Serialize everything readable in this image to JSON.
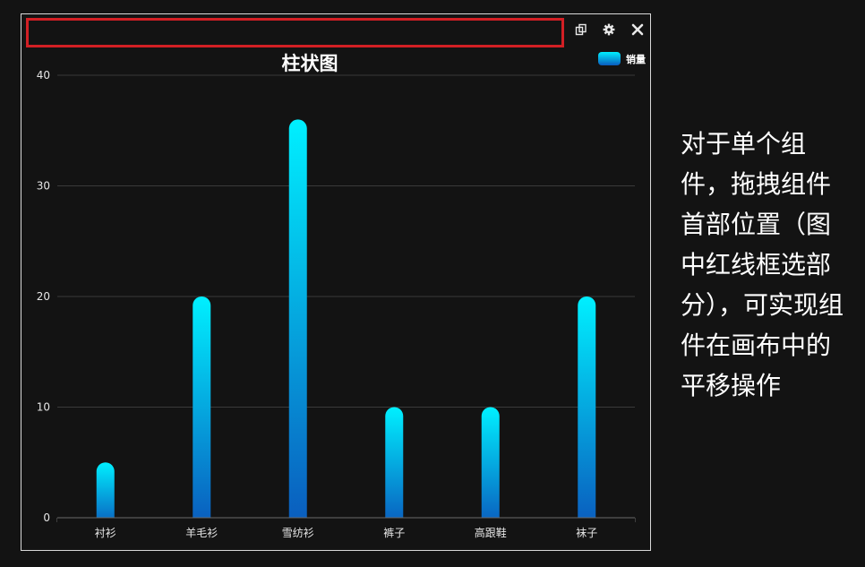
{
  "panel": {
    "toolbar": {
      "copy_icon": "copy-icon",
      "settings_icon": "gear-icon",
      "close_icon": "close-icon"
    }
  },
  "colors": {
    "background": "#131313",
    "highlight_border": "#d21f24",
    "bar_top": "#00f0ff",
    "bar_bottom": "#0a5bbd",
    "grid": "#3a3a3a"
  },
  "chart_data": {
    "type": "bar",
    "title": "柱状图",
    "categories": [
      "衬衫",
      "羊毛衫",
      "雪纺衫",
      "裤子",
      "高跟鞋",
      "袜子"
    ],
    "series": [
      {
        "name": "销量",
        "values": [
          5,
          20,
          36,
          10,
          10,
          20
        ]
      }
    ],
    "ylim": [
      0,
      40
    ],
    "yticks": [
      0,
      10,
      20,
      30,
      40
    ],
    "grid": true,
    "legend_position": "top-right"
  },
  "side_note": "对于单个组件，拖拽组件首部位置（图中红线框选部分），可实现组件在画布中的平移操作"
}
